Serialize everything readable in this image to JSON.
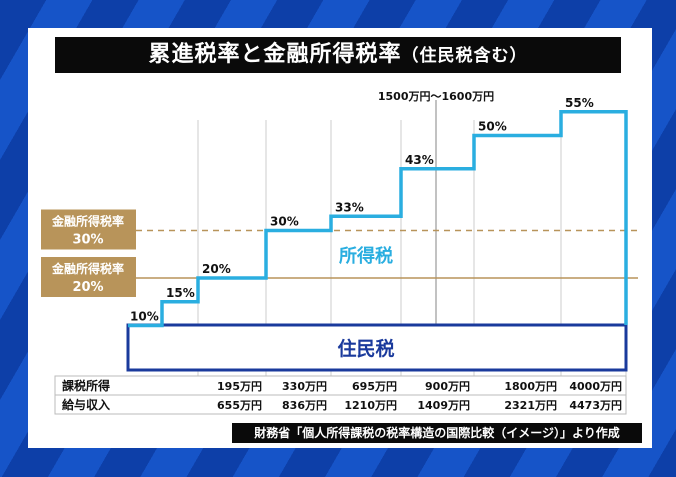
{
  "title": "累進税率と金融所得税率",
  "title_sub": "（住民税含む）",
  "chart_data": {
    "type": "line",
    "step": true,
    "rates_percent": [
      10,
      15,
      20,
      30,
      33,
      43,
      50,
      55
    ],
    "rate_labels": [
      "10%",
      "15%",
      "20%",
      "30%",
      "33%",
      "43%",
      "50%",
      "55%"
    ],
    "marker_label": "1500万円～1600万円",
    "income_tax_label": "所得税",
    "resident_tax_label": "住民税",
    "reference_lines": [
      {
        "label_line1": "金融所得税率",
        "label_line2": "30%",
        "value": 30,
        "style": "dashed"
      },
      {
        "label_line1": "金融所得税率",
        "label_line2": "20%",
        "value": 20,
        "style": "solid"
      }
    ],
    "table": {
      "rows": [
        {
          "header": "課税所得",
          "values": [
            "195万円",
            "330万円",
            "695万円",
            "900万円",
            "1800万円",
            "4000万円"
          ]
        },
        {
          "header": "給与収入",
          "values": [
            "655万円",
            "836万円",
            "1210万円",
            "1409万円",
            "2321万円",
            "4473万円"
          ]
        }
      ]
    },
    "colors": {
      "income_tax": "#2aaee0",
      "resident_tax": "#1a3a9c",
      "gold": "#b8945a"
    }
  },
  "source": "財務省「個人所得課税の税率構造の国際比較（イメージ）」より作成"
}
